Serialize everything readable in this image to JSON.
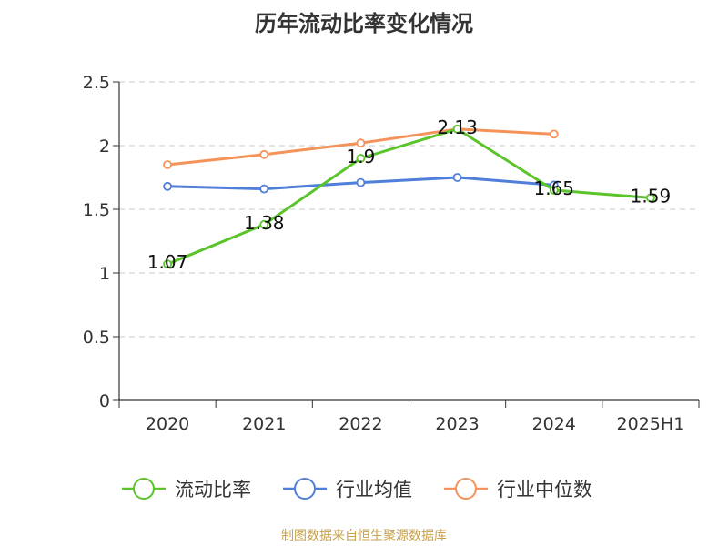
{
  "chart_data": {
    "type": "line",
    "title": "历年流动比率变化情况",
    "xlabel": "",
    "ylabel": "",
    "categories": [
      "2020",
      "2021",
      "2022",
      "2023",
      "2024",
      "2025H1"
    ],
    "ylim": [
      0,
      2.5
    ],
    "yticks": [
      "0",
      "0.5",
      "1",
      "1.5",
      "2",
      "2.5"
    ],
    "grid": true,
    "legend_position": "bottom",
    "series": [
      {
        "name": "流动比率",
        "color": "#5ac42a",
        "values": [
          1.07,
          1.38,
          1.9,
          2.13,
          1.65,
          1.59
        ],
        "labels": [
          "1.07",
          "1.38",
          "1.9",
          "2.13",
          "1.65",
          "1.59"
        ]
      },
      {
        "name": "行业均值",
        "color": "#4f7fd8",
        "values": [
          1.68,
          1.66,
          1.71,
          1.75,
          1.69,
          null
        ]
      },
      {
        "name": "行业中位数",
        "color": "#f5925a",
        "values": [
          1.85,
          1.93,
          2.02,
          2.13,
          2.09,
          null
        ]
      }
    ]
  },
  "footer": {
    "source": "制图数据来自恒生聚源数据库"
  }
}
